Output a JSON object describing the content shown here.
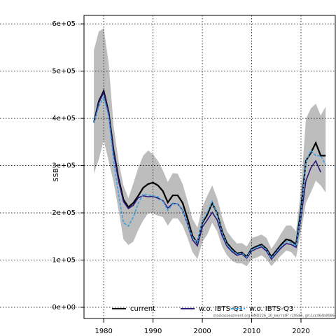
{
  "chart_data": {
    "type": "line",
    "ylabel": "SSB",
    "footnote": "stockassessment.org BMD226_10_key'ratF' r19585, git:1cc464b8086",
    "x": [
      1978,
      1979,
      1980,
      1981,
      1982,
      1983,
      1984,
      1985,
      1986,
      1987,
      1988,
      1989,
      1990,
      1991,
      1992,
      1993,
      1994,
      1995,
      1996,
      1997,
      1998,
      1999,
      2000,
      2001,
      2002,
      2003,
      2004,
      2005,
      2006,
      2007,
      2008,
      2009,
      2010,
      2011,
      2012,
      2013,
      2014,
      2015,
      2016,
      2017,
      2018,
      2019,
      2020,
      2021,
      2022,
      2023,
      2024,
      2025
    ],
    "band": {
      "color": "#bdbdbd",
      "upper": [
        544000,
        584000,
        591000,
        517000,
        384000,
        310000,
        258000,
        231000,
        262000,
        295000,
        321000,
        332000,
        324000,
        310000,
        290000,
        265000,
        284000,
        283000,
        261000,
        225000,
        187000,
        169000,
        213000,
        236000,
        258000,
        231000,
        191000,
        161000,
        147000,
        135000,
        136000,
        129000,
        147000,
        150000,
        154000,
        147000,
        124000,
        139000,
        157000,
        173000,
        173000,
        161000,
        250000,
        399000,
        421000,
        431000,
        406000,
        425000
      ],
      "lower": [
        283000,
        313000,
        354000,
        310000,
        265000,
        206000,
        144000,
        132000,
        139000,
        164000,
        184000,
        199000,
        199000,
        194000,
        191000,
        173000,
        188000,
        188000,
        173000,
        147000,
        117000,
        102000,
        139000,
        154000,
        179000,
        161000,
        129000,
        110000,
        99000,
        93000,
        93000,
        87000,
        102000,
        105000,
        110000,
        102000,
        87000,
        99000,
        110000,
        120000,
        117000,
        105000,
        161000,
        221000,
        243000,
        268000,
        258000,
        243000
      ]
    },
    "series": [
      {
        "name": "current",
        "color": "#000000",
        "dash": false,
        "values": [
          391000,
          436000,
          458000,
          413000,
          332000,
          273000,
          228000,
          212000,
          221000,
          236000,
          253000,
          261000,
          264000,
          258000,
          246000,
          222000,
          237000,
          237000,
          221000,
          188000,
          151000,
          136000,
          179000,
          196000,
          221000,
          199000,
          161000,
          136000,
          124000,
          114000,
          116000,
          107000,
          124000,
          129000,
          133000,
          124000,
          107000,
          120000,
          133000,
          144000,
          141000,
          133000,
          206000,
          310000,
          327000,
          348000,
          321000,
          321000
        ]
      },
      {
        "name": "w.o. IBTS-Q1",
        "color": "#2a1b7c",
        "dash": false,
        "values": [
          391000,
          433000,
          455000,
          410000,
          328000,
          268000,
          224000,
          209000,
          216000,
          232000,
          236000,
          234000,
          235000,
          231000,
          226000,
          210000,
          220000,
          219000,
          206000,
          176000,
          143000,
          130000,
          170000,
          185000,
          201000,
          185000,
          152000,
          129000,
          118000,
          110000,
          113000,
          104000,
          119000,
          124000,
          128000,
          119000,
          102000,
          114000,
          126000,
          135000,
          133000,
          127000,
          190000,
          268000,
          295000,
          310000,
          286000,
          null
        ]
      },
      {
        "name": "w.o. IBTS-Q3",
        "color": "#3a9fe0",
        "dash": true,
        "values": [
          391000,
          425000,
          445000,
          405000,
          310000,
          240000,
          179000,
          172000,
          191000,
          220000,
          240000,
          238000,
          236000,
          234000,
          225000,
          205000,
          219000,
          219000,
          205000,
          177000,
          148000,
          137000,
          181000,
          201000,
          224000,
          197000,
          158000,
          133000,
          121000,
          113000,
          115000,
          106000,
          122000,
          127000,
          131000,
          122000,
          104000,
          117000,
          130000,
          139000,
          137000,
          130000,
          198000,
          307000,
          332000,
          321000,
          321000,
          302000
        ]
      }
    ],
    "xlim": [
      1976,
      2027.1
    ],
    "ylim": [
      -23700,
      618000
    ],
    "xticks": [
      1980,
      1990,
      2000,
      2010,
      2020
    ],
    "yticks": [
      {
        "value": 0,
        "label": "0e+00"
      },
      {
        "value": 100000,
        "label": "1e+05"
      },
      {
        "value": 200000,
        "label": "2e+05"
      },
      {
        "value": 300000,
        "label": "3e+05"
      },
      {
        "value": 400000,
        "label": "4e+05"
      },
      {
        "value": 500000,
        "label": "5e+05"
      },
      {
        "value": 600000,
        "label": "6e+05"
      }
    ],
    "grid": true,
    "legend": "bottom"
  }
}
